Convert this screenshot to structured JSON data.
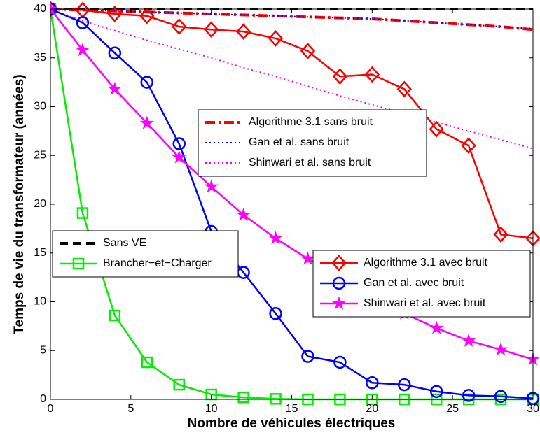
{
  "chart_data": {
    "type": "line",
    "x_label": "Nombre de véhicules électriques",
    "y_label": "Temps de vie du transformateur (années)",
    "x": [
      0,
      2,
      4,
      6,
      8,
      10,
      12,
      14,
      16,
      18,
      20,
      22,
      24,
      26,
      28,
      30
    ],
    "xlim": [
      0,
      30
    ],
    "xticks": [
      0,
      5,
      10,
      15,
      20,
      25,
      30
    ],
    "ylim": [
      0,
      40
    ],
    "yticks": [
      0,
      5,
      10,
      15,
      20,
      25,
      30,
      35,
      40
    ],
    "grid": false,
    "series": [
      {
        "name": "Algorithme 3.1 sans bruit",
        "color": "#ff0000",
        "style": "dashdot",
        "values": [
          40,
          39.9,
          39.8,
          39.7,
          39.6,
          39.5,
          39.4,
          39.3,
          39.2,
          39.1,
          39.0,
          38.8,
          38.6,
          38.4,
          38.2,
          37.9
        ]
      },
      {
        "name": "Gan et al. sans bruit",
        "color": "#0000ff",
        "style": "dotted",
        "values": [
          40,
          39.9,
          39.8,
          39.7,
          39.6,
          39.5,
          39.4,
          39.3,
          39.2,
          39.1,
          39.0,
          38.8,
          38.6,
          38.4,
          38.2,
          38.0
        ]
      },
      {
        "name": "Shinwari et al. sans bruit",
        "color": "#ff00ff",
        "style": "dotted",
        "values": [
          40,
          38.8,
          37.8,
          36.8,
          35.9,
          35.0,
          34.0,
          33.1,
          32.1,
          31.1,
          30.2,
          29.3,
          28.4,
          27.5,
          26.6,
          25.7
        ]
      },
      {
        "name": "Sans VE",
        "color": "#000000",
        "style": "dashed",
        "values": [
          40,
          40,
          40,
          40,
          40,
          40,
          40,
          40,
          40,
          40,
          40,
          40,
          40,
          40,
          40,
          40
        ]
      },
      {
        "name": "Brancher−et−Charger",
        "color": "#00ee00",
        "style": "solid",
        "marker": "square",
        "values": [
          40,
          19.1,
          8.6,
          3.8,
          1.5,
          0.5,
          0.2,
          0.05,
          0,
          0,
          0,
          0,
          0,
          0,
          0,
          0
        ]
      },
      {
        "name": "Algorithme 3.1 avec bruit",
        "color": "#ff0000",
        "style": "solid",
        "marker": "diamond",
        "values": [
          40,
          39.9,
          39.5,
          39.3,
          38.2,
          37.9,
          37.7,
          37.0,
          35.7,
          33.1,
          33.3,
          31.8,
          27.7,
          26.0,
          16.9,
          16.5
        ]
      },
      {
        "name": "Gan et al. avec bruit",
        "color": "#0000ff",
        "style": "solid",
        "marker": "circle",
        "values": [
          40,
          38.6,
          35.5,
          32.5,
          26.2,
          17.2,
          13.0,
          8.8,
          4.4,
          3.8,
          1.7,
          1.5,
          0.8,
          0.4,
          0.3,
          0.1
        ]
      },
      {
        "name": "Shinwari et al. avec bruit",
        "color": "#ff00ff",
        "style": "solid",
        "marker": "star",
        "values": [
          40,
          35.8,
          31.8,
          28.3,
          24.8,
          21.8,
          18.9,
          16.5,
          14.4,
          12.6,
          10.7,
          8.8,
          7.3,
          6.0,
          5.1,
          4.1
        ]
      }
    ]
  }
}
